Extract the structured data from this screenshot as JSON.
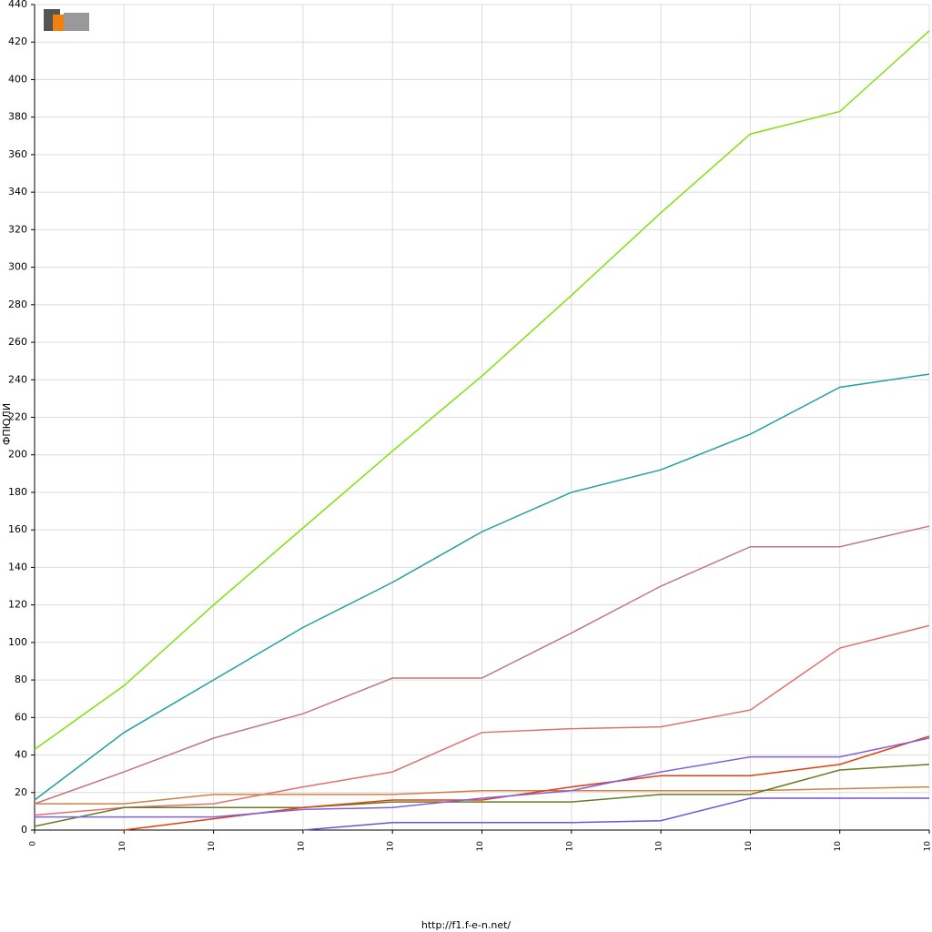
{
  "chart_data": {
    "type": "line",
    "y_label": "ФПЮЛИ",
    "footer": "http://f1.f-e-n.net/",
    "categories": [
      "0",
      "10",
      "10",
      "10",
      "10",
      "10",
      "10",
      "10",
      "10",
      "10",
      "10"
    ],
    "ylim": [
      0,
      440
    ],
    "yticks": [
      0,
      20,
      40,
      60,
      80,
      100,
      120,
      140,
      160,
      180,
      200,
      220,
      240,
      260,
      280,
      300,
      320,
      340,
      360,
      380,
      400,
      420,
      440
    ],
    "grid": true,
    "series": [
      {
        "color": "#80e010",
        "values": [
          43,
          77,
          120,
          161,
          202,
          242,
          285,
          329,
          371,
          383,
          426
        ]
      },
      {
        "color": "#20a0a0",
        "values": [
          16,
          52,
          80,
          108,
          132,
          159,
          180,
          192,
          211,
          236,
          243
        ]
      },
      {
        "color": "#c07880",
        "values": [
          14,
          31,
          49,
          62,
          81,
          81,
          105,
          130,
          151,
          151,
          162
        ]
      },
      {
        "color": "#e07070",
        "values": [
          8,
          12,
          14,
          23,
          31,
          52,
          54,
          55,
          64,
          97,
          109
        ]
      },
      {
        "color": "#d08040",
        "values": [
          14,
          14,
          19,
          19,
          19,
          21,
          21,
          21,
          21,
          22,
          23
        ]
      },
      {
        "color": "#6a7a20",
        "values": [
          2,
          12,
          12,
          12,
          15,
          15,
          15,
          19,
          19,
          32,
          35
        ]
      },
      {
        "color": "#e04010",
        "values": [
          null,
          0,
          6,
          12,
          16,
          16,
          23,
          29,
          29,
          35,
          50
        ]
      },
      {
        "color": "#8060e0",
        "values": [
          7,
          7,
          7,
          11,
          12,
          17,
          21,
          31,
          39,
          39,
          49
        ]
      },
      {
        "color": "#7050e0",
        "values": [
          null,
          null,
          null,
          0,
          4,
          4,
          4,
          5,
          17,
          17,
          17
        ]
      }
    ]
  }
}
